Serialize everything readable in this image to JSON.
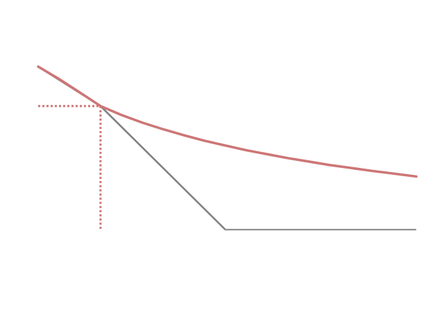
{
  "chart_data": {
    "type": "line",
    "title": "",
    "xlabel": "",
    "ylabel": "",
    "xlim": [
      0,
      1
    ],
    "ylim": [
      0,
      1
    ],
    "grid": false,
    "axes_visible": false,
    "colors": {
      "piecewise": "#808080",
      "curve": "#cd7676",
      "reference": "#cd7676"
    },
    "series": [
      {
        "style": "solid",
        "color": "#808080",
        "x": [
          0.0,
          0.165,
          0.495,
          1.0
        ],
        "y": [
          0.81,
          0.66,
          0.19,
          0.19
        ]
      },
      {
        "style": "solid",
        "color": "#cd7676",
        "x": [
          0.0,
          0.055,
          0.11,
          0.165,
          0.22,
          0.275,
          0.33,
          0.385,
          0.44,
          0.495,
          0.55,
          0.605,
          0.66,
          0.715,
          0.77,
          0.825,
          0.88,
          0.935,
          1.0
        ],
        "y": [
          0.81,
          0.763,
          0.712,
          0.66,
          0.626,
          0.597,
          0.572,
          0.549,
          0.528,
          0.51,
          0.492,
          0.477,
          0.462,
          0.449,
          0.436,
          0.425,
          0.414,
          0.404,
          0.392
        ]
      }
    ],
    "reference_lines": [
      {
        "style": "dotted",
        "color": "#cd7676",
        "x": [
          0.0,
          0.165
        ],
        "y": [
          0.66,
          0.66
        ]
      },
      {
        "style": "dotted",
        "color": "#cd7676",
        "x": [
          0.165,
          0.165
        ],
        "y": [
          0.66,
          0.19
        ]
      }
    ]
  }
}
